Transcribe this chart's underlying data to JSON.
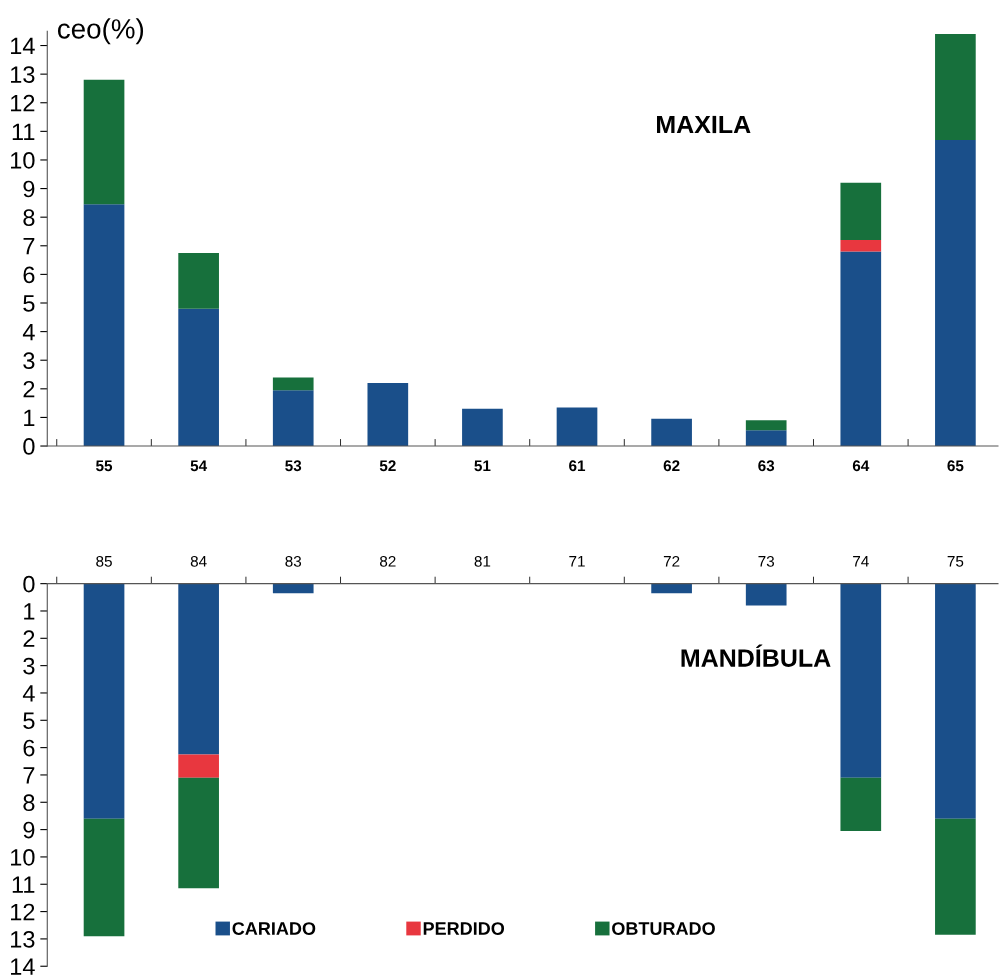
{
  "chart_data": [
    {
      "type": "bar",
      "title": "MAXILA",
      "ylabel": "ceo(%)",
      "stacked": true,
      "categories": [
        "55",
        "54",
        "53",
        "52",
        "51",
        "61",
        "62",
        "63",
        "64",
        "65"
      ],
      "series": [
        {
          "color": "#1a4f8a",
          "values": [
            8.45,
            4.8,
            1.95,
            2.2,
            1.3,
            1.35,
            0.95,
            0.55,
            6.8,
            10.7
          ]
        },
        {
          "color": "#e8373f",
          "values": [
            0,
            0,
            0,
            0,
            0,
            0,
            0,
            0,
            0.4,
            0
          ]
        },
        {
          "color": "#17703c",
          "values": [
            4.35,
            1.95,
            0.45,
            0,
            0,
            0,
            0,
            0.35,
            2.0,
            3.7
          ]
        }
      ],
      "ylim": [
        0,
        14.5
      ],
      "yticks": [
        0,
        1,
        2,
        3,
        4,
        5,
        6,
        7,
        8,
        9,
        10,
        11,
        12,
        13,
        14
      ],
      "grid": false,
      "legend": false
    },
    {
      "type": "bar",
      "title": "MANDÍBULA",
      "stacked": true,
      "categories": [
        "85",
        "84",
        "83",
        "82",
        "81",
        "71",
        "72",
        "73",
        "74",
        "75"
      ],
      "series": [
        {
          "name": "CARIADO",
          "color": "#1a4f8a",
          "values": [
            8.6,
            6.25,
            0.35,
            0,
            0,
            0,
            0.35,
            0.8,
            7.1,
            8.6
          ]
        },
        {
          "name": "PERDIDO",
          "color": "#e8373f",
          "values": [
            0,
            0.85,
            0,
            0,
            0,
            0,
            0,
            0,
            0,
            0
          ]
        },
        {
          "name": "OBTURADO",
          "color": "#17703c",
          "values": [
            4.3,
            4.05,
            0,
            0,
            0,
            0,
            0,
            0,
            1.95,
            4.25
          ]
        }
      ],
      "ylim": [
        14,
        0
      ],
      "yticks": [
        0,
        1,
        2,
        3,
        4,
        5,
        6,
        7,
        8,
        9,
        10,
        11,
        12,
        13,
        14
      ],
      "grid": false,
      "legend": "bottom"
    }
  ]
}
